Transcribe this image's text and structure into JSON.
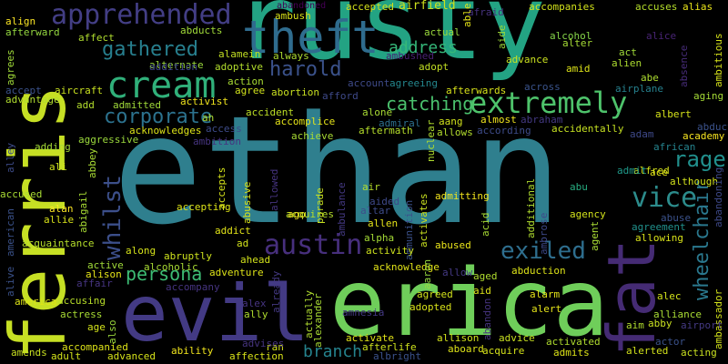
{
  "words": [
    {
      "text": "ethan",
      "color": "#2f7f8e"
    },
    {
      "text": "rusty",
      "color": "#23a383"
    },
    {
      "text": "erica",
      "color": "#6fce5a"
    },
    {
      "text": "evil",
      "color": "#433a84"
    },
    {
      "text": "ferris",
      "color": "#c6df24"
    },
    {
      "text": "fat",
      "color": "#452b74"
    },
    {
      "text": "theft",
      "color": "#2f6c8e"
    },
    {
      "text": "apprehended",
      "color": "#433e85"
    },
    {
      "text": "cream",
      "color": "#30b07a"
    },
    {
      "text": "extremely",
      "color": "#4ec36b"
    },
    {
      "text": "austin",
      "color": "#472f7d"
    },
    {
      "text": "exiled",
      "color": "#2e6e8e"
    },
    {
      "text": "whilst",
      "color": "#3c4f8a"
    },
    {
      "text": "vice",
      "color": "#2c8c8c"
    },
    {
      "text": "rage",
      "color": "#21908d"
    },
    {
      "text": "gathered",
      "color": "#277f8e"
    },
    {
      "text": "corporate",
      "color": "#2c728e"
    },
    {
      "text": "harold",
      "color": "#3b528b"
    },
    {
      "text": "wheelchair",
      "color": "#2a788e"
    },
    {
      "text": "persona",
      "color": "#3dbc74"
    },
    {
      "text": "catching",
      "color": "#4ac16d"
    },
    {
      "text": "branch",
      "color": "#25838e"
    },
    {
      "text": "address",
      "color": "#35b779"
    },
    {
      "text": "airfield",
      "color": "#cde11d"
    },
    {
      "text": "accusing",
      "color": "#b8de29"
    },
    {
      "text": "accident",
      "color": "#bddf26"
    },
    {
      "text": "align",
      "color": "#fde725"
    },
    {
      "text": "ambush",
      "color": "#d8e219"
    },
    {
      "text": "accompanies",
      "color": "#d2e21b"
    },
    {
      "text": "alias",
      "color": "#eae51a"
    },
    {
      "text": "accuses",
      "color": "#b5de2b"
    },
    {
      "text": "accepted",
      "color": "#d5e21a"
    },
    {
      "text": "abandoned",
      "color": "#440154"
    },
    {
      "text": "afraid",
      "color": "#46327e"
    },
    {
      "text": "able",
      "color": "#e5e419"
    },
    {
      "text": "aide",
      "color": "#9fda3a"
    },
    {
      "text": "afterward",
      "color": "#95d840"
    },
    {
      "text": "affect",
      "color": "#b0dd2f"
    },
    {
      "text": "abducts",
      "color": "#a0da39"
    },
    {
      "text": "alamein",
      "color": "#c2df23"
    },
    {
      "text": "always",
      "color": "#addc30"
    },
    {
      "text": "alternate",
      "color": "#9bd93c"
    },
    {
      "text": "addition",
      "color": "#3f4788"
    },
    {
      "text": "adoptive",
      "color": "#b2dd2d"
    },
    {
      "text": "action",
      "color": "#a8db34"
    },
    {
      "text": "agree",
      "color": "#d0e11c"
    },
    {
      "text": "abortion",
      "color": "#c8e020"
    },
    {
      "text": "afford",
      "color": "#3e4989"
    },
    {
      "text": "account",
      "color": "#3e4a89"
    },
    {
      "text": "agreeing",
      "color": "#24878e"
    },
    {
      "text": "amid",
      "color": "#dde318"
    },
    {
      "text": "alien",
      "color": "#addc30"
    },
    {
      "text": "alice",
      "color": "#482475"
    },
    {
      "text": "alter",
      "color": "#a5db36"
    },
    {
      "text": "alcohol",
      "color": "#86d549"
    },
    {
      "text": "actual",
      "color": "#9bd93c"
    },
    {
      "text": "adopt",
      "color": "#c2df23"
    },
    {
      "text": "advance",
      "color": "#cae11f"
    },
    {
      "text": "ambushed",
      "color": "#482173"
    },
    {
      "text": "act",
      "color": "#a0da39"
    },
    {
      "text": "abe",
      "color": "#addc30"
    },
    {
      "text": "airplane",
      "color": "#26818e"
    },
    {
      "text": "aging",
      "color": "#a5db36"
    },
    {
      "text": "absence",
      "color": "#472c7a"
    },
    {
      "text": "ambitious",
      "color": "#d5e21a"
    },
    {
      "text": "across",
      "color": "#3a548c"
    },
    {
      "text": "afterwards",
      "color": "#d8e219"
    },
    {
      "text": "abraham",
      "color": "#443983"
    },
    {
      "text": "almost",
      "color": "#f1e51d"
    },
    {
      "text": "aang",
      "color": "#d0e11c"
    },
    {
      "text": "admiral",
      "color": "#2d708e"
    },
    {
      "text": "alone",
      "color": "#a8db34"
    },
    {
      "text": "aftermath",
      "color": "#b5de2b"
    },
    {
      "text": "allows",
      "color": "#b2dd2d"
    },
    {
      "text": "according",
      "color": "#3e4c8a"
    },
    {
      "text": "accidentally",
      "color": "#c5e021"
    },
    {
      "text": "adam",
      "color": "#3e4989"
    },
    {
      "text": "albert",
      "color": "#d5e21a"
    },
    {
      "text": "abducted",
      "color": "#3b528b"
    },
    {
      "text": "academy",
      "color": "#f8e621"
    },
    {
      "text": "african",
      "color": "#25848e"
    },
    {
      "text": "ace",
      "color": "#e2e418"
    },
    {
      "text": "although",
      "color": "#d2e21b"
    },
    {
      "text": "alfred",
      "color": "#d5e21a"
    },
    {
      "text": "abandoning",
      "color": "#3e4989"
    },
    {
      "text": "admit",
      "color": "#1f9a8a"
    },
    {
      "text": "abu",
      "color": "#27ad81"
    },
    {
      "text": "agency",
      "color": "#d2e21b"
    },
    {
      "text": "abuse",
      "color": "#3b528b"
    },
    {
      "text": "agreement",
      "color": "#21918c"
    },
    {
      "text": "allowing",
      "color": "#d8e219"
    },
    {
      "text": "agent",
      "color": "#a8db34"
    },
    {
      "text": "ambrose",
      "color": "#3e4989"
    },
    {
      "text": "additional",
      "color": "#b0dd2f"
    },
    {
      "text": "acid",
      "color": "#a8db34"
    },
    {
      "text": "activates",
      "color": "#c8e020"
    },
    {
      "text": "ammunition",
      "color": "#3b528b"
    },
    {
      "text": "nuclear",
      "color": "#b0dd2f"
    },
    {
      "text": "admitting",
      "color": "#f1e51d"
    },
    {
      "text": "abused",
      "color": "#eae51a"
    },
    {
      "text": "allow",
      "color": "#443983"
    },
    {
      "text": "aged",
      "color": "#b0dd2f"
    },
    {
      "text": "abduction",
      "color": "#dde318"
    },
    {
      "text": "acknowledge",
      "color": "#e2e418"
    },
    {
      "text": "aaron",
      "color": "#95d840"
    },
    {
      "text": "activity",
      "color": "#cde11d"
    },
    {
      "text": "alpha",
      "color": "#a5db36"
    },
    {
      "text": "allen",
      "color": "#e5e419"
    },
    {
      "text": "altar",
      "color": "#3e4c8a"
    },
    {
      "text": "aided",
      "color": "#3e4989"
    },
    {
      "text": "air",
      "color": "#b5de2b"
    },
    {
      "text": "acquires",
      "color": "#b5de2b"
    },
    {
      "text": "ambulance",
      "color": "#443983"
    },
    {
      "text": "allowed",
      "color": "#463480"
    },
    {
      "text": "abusive",
      "color": "#d8e219"
    },
    {
      "text": "accepts",
      "color": "#d5e21a"
    },
    {
      "text": "ambition",
      "color": "#463480"
    },
    {
      "text": "access",
      "color": "#3e4c8a"
    },
    {
      "text": "achieve",
      "color": "#a8db34"
    },
    {
      "text": "accomplice",
      "color": "#e5e419"
    },
    {
      "text": "activist",
      "color": "#f1e51d"
    },
    {
      "text": "ah",
      "color": "#b0dd2f"
    },
    {
      "text": "add",
      "color": "#b2dd2d"
    },
    {
      "text": "admitted",
      "color": "#a0da39"
    },
    {
      "text": "acknowledges",
      "color": "#dde318"
    },
    {
      "text": "agrees",
      "color": "#a0da39"
    },
    {
      "text": "accept",
      "color": "#3b528b"
    },
    {
      "text": "advantage",
      "color": "#b0dd2f"
    },
    {
      "text": "aircraft",
      "color": "#c8e020"
    },
    {
      "text": "aggressive",
      "color": "#9bd93c"
    },
    {
      "text": "adding",
      "color": "#a5db36"
    },
    {
      "text": "abbey",
      "color": "#a8db34"
    },
    {
      "text": "ali",
      "color": "#cde11d"
    },
    {
      "text": "alley",
      "color": "#3e4c8a"
    },
    {
      "text": "accused",
      "color": "#a8db34"
    },
    {
      "text": "american",
      "color": "#3b528b"
    },
    {
      "text": "alan",
      "color": "#fde725"
    },
    {
      "text": "allie",
      "color": "#d8e219"
    },
    {
      "text": "abigail",
      "color": "#a8db34"
    },
    {
      "text": "acquaintance",
      "color": "#b5de2b"
    },
    {
      "text": "accepting",
      "color": "#dde318"
    },
    {
      "text": "addict",
      "color": "#e2e418"
    },
    {
      "text": "ad",
      "color": "#d2e21b"
    },
    {
      "text": "ago",
      "color": "#f1e51d"
    },
    {
      "text": "parade",
      "color": "#c8e020"
    },
    {
      "text": "along",
      "color": "#d5e21a"
    },
    {
      "text": "abruptly",
      "color": "#cde11d"
    },
    {
      "text": "alcoholic",
      "color": "#a8db34"
    },
    {
      "text": "ahead",
      "color": "#d2e21b"
    },
    {
      "text": "alive",
      "color": "#3b528b"
    },
    {
      "text": "alison",
      "color": "#e5e419"
    },
    {
      "text": "active",
      "color": "#a0da39"
    },
    {
      "text": "affair",
      "color": "#463480"
    },
    {
      "text": "accompany",
      "color": "#463480"
    },
    {
      "text": "adventure",
      "color": "#dde318"
    },
    {
      "text": "america",
      "color": "#dde318"
    },
    {
      "text": "actress",
      "color": "#a8db34"
    },
    {
      "text": "age",
      "color": "#d2e21b"
    },
    {
      "text": "also",
      "color": "#9bd93c"
    },
    {
      "text": "alex",
      "color": "#463480"
    },
    {
      "text": "ally",
      "color": "#b0dd2f"
    },
    {
      "text": "already",
      "color": "#443983"
    },
    {
      "text": "actually",
      "color": "#b0dd2f"
    },
    {
      "text": "alexander",
      "color": "#a8db34"
    },
    {
      "text": "amnesia",
      "color": "#443983"
    },
    {
      "text": "agreed",
      "color": "#d2e21b"
    },
    {
      "text": "adopted",
      "color": "#d8e219"
    },
    {
      "text": "aid",
      "color": "#dde318"
    },
    {
      "text": "abandon",
      "color": "#463480"
    },
    {
      "text": "alarm",
      "color": "#e5e419"
    },
    {
      "text": "alert",
      "color": "#e5e419"
    },
    {
      "text": "alec",
      "color": "#d2e21b"
    },
    {
      "text": "alliance",
      "color": "#a8db34"
    },
    {
      "text": "ambassador",
      "color": "#d2e21b"
    },
    {
      "text": "aim",
      "color": "#b0dd2f"
    },
    {
      "text": "abby",
      "color": "#c8e020"
    },
    {
      "text": "airport",
      "color": "#443983"
    },
    {
      "text": "actor",
      "color": "#3b528b"
    },
    {
      "text": "acting",
      "color": "#c8e020"
    },
    {
      "text": "alerted",
      "color": "#d2e21b"
    },
    {
      "text": "activated",
      "color": "#b0dd2f"
    },
    {
      "text": "admits",
      "color": "#dde318"
    },
    {
      "text": "advice",
      "color": "#c8e020"
    },
    {
      "text": "acquire",
      "color": "#d5e21a"
    },
    {
      "text": "allison",
      "color": "#d2e21b"
    },
    {
      "text": "aboard",
      "color": "#dde318"
    },
    {
      "text": "activate",
      "color": "#e2e418"
    },
    {
      "text": "afterlife",
      "color": "#cde11d"
    },
    {
      "text": "albright",
      "color": "#3b528b"
    },
    {
      "text": "ran",
      "color": "#d2e21b"
    },
    {
      "text": "affection",
      "color": "#d8e219"
    },
    {
      "text": "advises",
      "color": "#463480"
    },
    {
      "text": "ability",
      "color": "#f1e51d"
    },
    {
      "text": "advanced",
      "color": "#d5e21a"
    },
    {
      "text": "accompanied",
      "color": "#dde318"
    },
    {
      "text": "adult",
      "color": "#d2e21b"
    },
    {
      "text": "amends",
      "color": "#c8e020"
    }
  ]
}
